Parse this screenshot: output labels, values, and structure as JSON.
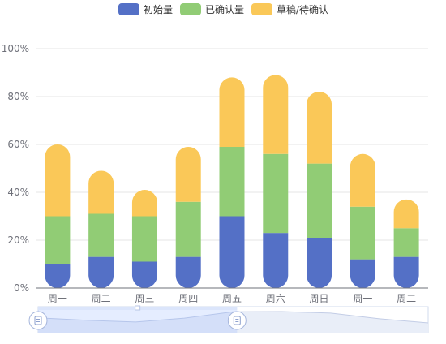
{
  "chart_data": {
    "type": "bar",
    "stacked": true,
    "categories": [
      "周一",
      "周二",
      "周三",
      "周四",
      "周五",
      "周六",
      "周日",
      "周一",
      "周二"
    ],
    "series": [
      {
        "name": "初始量",
        "color": "#5470c6",
        "values": [
          10,
          13,
          11,
          13,
          30,
          23,
          21,
          12,
          13
        ]
      },
      {
        "name": "已确认量",
        "color": "#91cc75",
        "values": [
          20,
          18,
          19,
          23,
          29,
          33,
          31,
          22,
          12
        ]
      },
      {
        "name": "草稿/待确认",
        "color": "#fac858",
        "values": [
          30,
          18,
          11,
          23,
          29,
          33,
          30,
          22,
          12
        ]
      }
    ],
    "ylim": [
      0,
      100
    ],
    "yticks": [
      "0%",
      "20%",
      "40%",
      "60%",
      "80%",
      "100%"
    ],
    "ytick_values": [
      0,
      20,
      40,
      60,
      80,
      100
    ],
    "grid": true,
    "legend_position": "top-center",
    "datazoom": {
      "start_fraction": 0.0,
      "end_fraction": 0.51
    }
  }
}
